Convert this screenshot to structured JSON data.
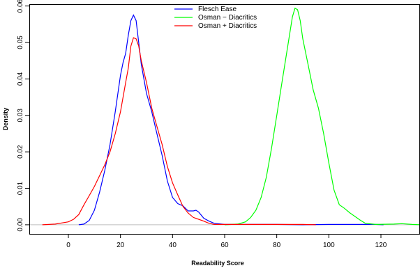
{
  "chart_data": {
    "type": "line",
    "title": "",
    "xlabel": "Readability Score",
    "ylabel": "Density",
    "xlim": [
      -15,
      135
    ],
    "ylim": [
      -0.0025,
      0.0605
    ],
    "x_ticks": [
      0,
      20,
      40,
      60,
      80,
      100,
      120
    ],
    "y_ticks": [
      0.0,
      0.01,
      0.02,
      0.03,
      0.04,
      0.05,
      0.06
    ],
    "y_tick_labels": [
      "0.00",
      "0.01",
      "0.02",
      "0.03",
      "0.04",
      "0.05",
      "0.06"
    ],
    "baseline": 0,
    "grid": false,
    "legend_position": "top-center",
    "series": [
      {
        "name": "Flesch Ease",
        "color": "#0000ff",
        "points": [
          [
            4,
            0
          ],
          [
            6,
            0.0002
          ],
          [
            8,
            0.0012
          ],
          [
            10,
            0.004
          ],
          [
            12,
            0.009
          ],
          [
            14,
            0.015
          ],
          [
            16,
            0.022
          ],
          [
            18,
            0.031
          ],
          [
            20,
            0.041
          ],
          [
            21,
            0.0445
          ],
          [
            22,
            0.047
          ],
          [
            23,
            0.052
          ],
          [
            24,
            0.056
          ],
          [
            25,
            0.0575
          ],
          [
            26,
            0.056
          ],
          [
            27,
            0.05
          ],
          [
            28,
            0.044
          ],
          [
            30,
            0.036
          ],
          [
            32,
            0.031
          ],
          [
            34,
            0.025
          ],
          [
            36,
            0.019
          ],
          [
            38,
            0.012
          ],
          [
            40,
            0.0075
          ],
          [
            42,
            0.0058
          ],
          [
            44,
            0.0052
          ],
          [
            46,
            0.0038
          ],
          [
            48,
            0.0038
          ],
          [
            49,
            0.004
          ],
          [
            50,
            0.0035
          ],
          [
            52,
            0.0018
          ],
          [
            54,
            0.001
          ],
          [
            56,
            0.0004
          ],
          [
            60,
            0.0001
          ],
          [
            70,
            0.0001
          ],
          [
            80,
            0.0001
          ],
          [
            90,
            0
          ],
          [
            100,
            0.0001
          ],
          [
            110,
            0.0001
          ],
          [
            118,
            0.0001
          ],
          [
            121,
            0
          ]
        ]
      },
      {
        "name": "Osman − Diacritics",
        "color": "#00ff00",
        "points": [
          [
            60,
            0
          ],
          [
            65,
            0.0002
          ],
          [
            68,
            0.0008
          ],
          [
            70,
            0.002
          ],
          [
            72,
            0.004
          ],
          [
            74,
            0.0075
          ],
          [
            76,
            0.013
          ],
          [
            78,
            0.021
          ],
          [
            80,
            0.03
          ],
          [
            82,
            0.039
          ],
          [
            84,
            0.048
          ],
          [
            86,
            0.057
          ],
          [
            87,
            0.0594
          ],
          [
            88,
            0.059
          ],
          [
            89,
            0.056
          ],
          [
            90,
            0.051
          ],
          [
            92,
            0.044
          ],
          [
            94,
            0.037
          ],
          [
            96,
            0.032
          ],
          [
            98,
            0.025
          ],
          [
            100,
            0.017
          ],
          [
            102,
            0.0095
          ],
          [
            104,
            0.0055
          ],
          [
            106,
            0.0045
          ],
          [
            108,
            0.0033
          ],
          [
            110,
            0.0023
          ],
          [
            112,
            0.0013
          ],
          [
            114,
            0.0004
          ],
          [
            118,
            0.0001
          ],
          [
            125,
            0.0002
          ],
          [
            128,
            0.0003
          ],
          [
            132,
            0.0001
          ],
          [
            135,
            0
          ]
        ]
      },
      {
        "name": "Osman + Diacritics",
        "color": "#ff0000",
        "points": [
          [
            -10,
            0
          ],
          [
            -5,
            0.0002
          ],
          [
            0,
            0.0008
          ],
          [
            2,
            0.0015
          ],
          [
            4,
            0.0028
          ],
          [
            6,
            0.0055
          ],
          [
            8,
            0.008
          ],
          [
            10,
            0.0105
          ],
          [
            12,
            0.0135
          ],
          [
            14,
            0.0165
          ],
          [
            16,
            0.02
          ],
          [
            18,
            0.025
          ],
          [
            20,
            0.031
          ],
          [
            22,
            0.039
          ],
          [
            23,
            0.043
          ],
          [
            24,
            0.049
          ],
          [
            25,
            0.0513
          ],
          [
            26,
            0.051
          ],
          [
            27,
            0.049
          ],
          [
            28,
            0.045
          ],
          [
            30,
            0.039
          ],
          [
            32,
            0.032
          ],
          [
            34,
            0.027
          ],
          [
            36,
            0.022
          ],
          [
            38,
            0.016
          ],
          [
            40,
            0.0115
          ],
          [
            42,
            0.0082
          ],
          [
            44,
            0.005
          ],
          [
            46,
            0.0032
          ],
          [
            48,
            0.002
          ],
          [
            50,
            0.0015
          ],
          [
            52,
            0.001
          ],
          [
            54,
            0.0004
          ],
          [
            56,
            0.0001
          ],
          [
            60,
            0.0001
          ],
          [
            70,
            0.0001
          ],
          [
            80,
            0.0001
          ],
          [
            90,
            0.0001
          ],
          [
            95,
            0
          ]
        ]
      }
    ]
  }
}
